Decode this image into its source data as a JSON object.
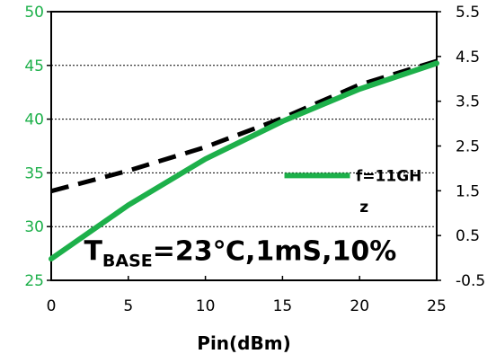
{
  "chart_data": {
    "type": "line",
    "x": [
      0,
      5,
      10,
      15,
      20,
      25
    ],
    "xlabel": "Pin(dBm)",
    "xlim": [
      0,
      25
    ],
    "x_ticks": [
      "0",
      "5",
      "10",
      "15",
      "20",
      "25"
    ],
    "ylim_left": [
      25,
      50
    ],
    "y_ticks_left": [
      "50",
      "45",
      "40",
      "35",
      "30",
      "25"
    ],
    "ylim_right": [
      -0.5,
      5.5
    ],
    "y_ticks_right": [
      "5.5",
      "4.5",
      "3.5",
      "2.5",
      "1.5",
      "0.5",
      "-0.5"
    ],
    "grid": "horizontal-dashed",
    "series": [
      {
        "name": "f=11GHz",
        "axis": "left",
        "style": "solid",
        "color": "#1db04a",
        "values": [
          27.0,
          32.0,
          36.3,
          39.8,
          42.8,
          45.2
        ]
      },
      {
        "axis": "left",
        "style": "dashed",
        "color": "#000000",
        "values": [
          33.3,
          35.2,
          37.4,
          40.1,
          43.2,
          45.4
        ]
      }
    ],
    "legend": {
      "position": "right-middle",
      "label_line1": "f=11GH",
      "label_line2": "z"
    },
    "annotation": {
      "prefix": "T",
      "subscript": "BASE",
      "suffix": "=23℃,1mS,10%"
    }
  }
}
